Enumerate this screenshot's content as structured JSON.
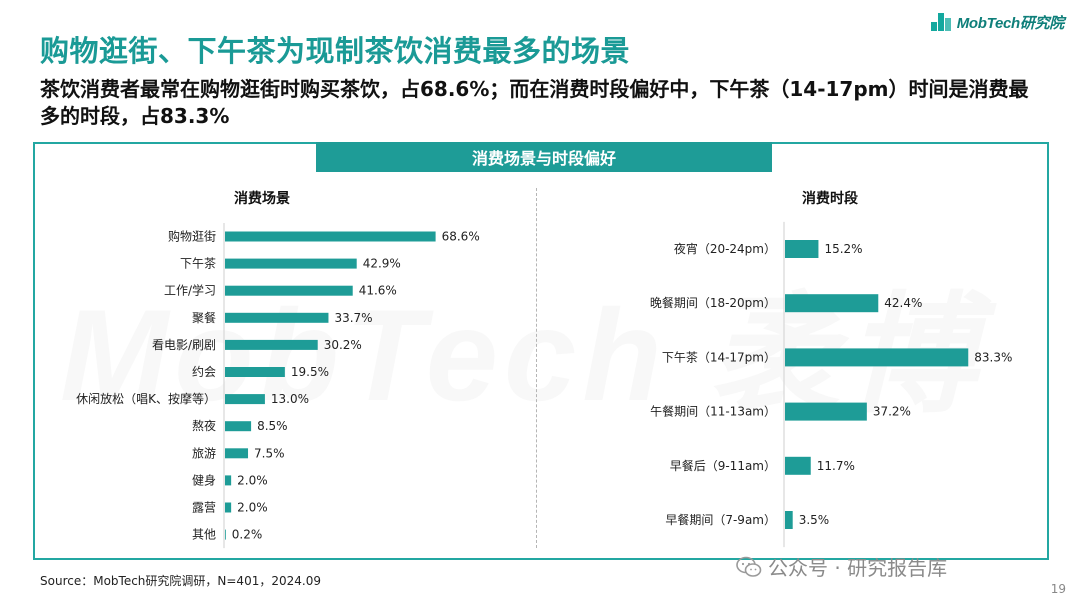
{
  "header": {
    "logo_text": "MobTech研究院",
    "title": "购物逛街、下午茶为现制茶饮消费最多的场景",
    "subtitle": "茶饮消费者最常在购物逛街时购买茶饮，占68.6%；而在消费时段偏好中，下午茶（14-17pm）时间是消费最多的时段，占83.3%"
  },
  "panel": {
    "banner": "消费场景与时段偏好",
    "watermark": "MobTech 袤博"
  },
  "colors": {
    "bar": "#1e9c97",
    "accent": "#1a9a96"
  },
  "chart_data": [
    {
      "type": "bar",
      "orientation": "horizontal",
      "title": "消费场景",
      "categories": [
        "购物逛街",
        "下午茶",
        "工作/学习",
        "聚餐",
        "看电影/刷剧",
        "约会",
        "休闲放松（唱K、按摩等）",
        "熬夜",
        "旅游",
        "健身",
        "露营",
        "其他"
      ],
      "values": [
        68.6,
        42.9,
        41.6,
        33.7,
        30.2,
        19.5,
        13.0,
        8.5,
        7.5,
        2.0,
        2.0,
        0.2
      ],
      "value_labels": [
        "68.6%",
        "42.9%",
        "41.6%",
        "33.7%",
        "30.2%",
        "19.5%",
        "13.0%",
        "8.5%",
        "7.5%",
        "2.0%",
        "2.0%",
        "0.2%"
      ],
      "unit": "%"
    },
    {
      "type": "bar",
      "orientation": "horizontal",
      "title": "消费时段",
      "categories": [
        "夜宵（20-24pm）",
        "晚餐期间（18-20pm）",
        "下午茶（14-17pm）",
        "午餐期间（11-13am）",
        "早餐后（9-11am）",
        "早餐期间（7-9am）"
      ],
      "values": [
        15.2,
        42.4,
        83.3,
        37.2,
        11.7,
        3.5
      ],
      "value_labels": [
        "15.2%",
        "42.4%",
        "83.3%",
        "37.2%",
        "11.7%",
        "3.5%"
      ],
      "unit": "%"
    }
  ],
  "footer": {
    "source": "Source：MobTech研究院调研，N=401，2024.09",
    "wechat": "公众号 · 研究报告库",
    "page": "19"
  }
}
